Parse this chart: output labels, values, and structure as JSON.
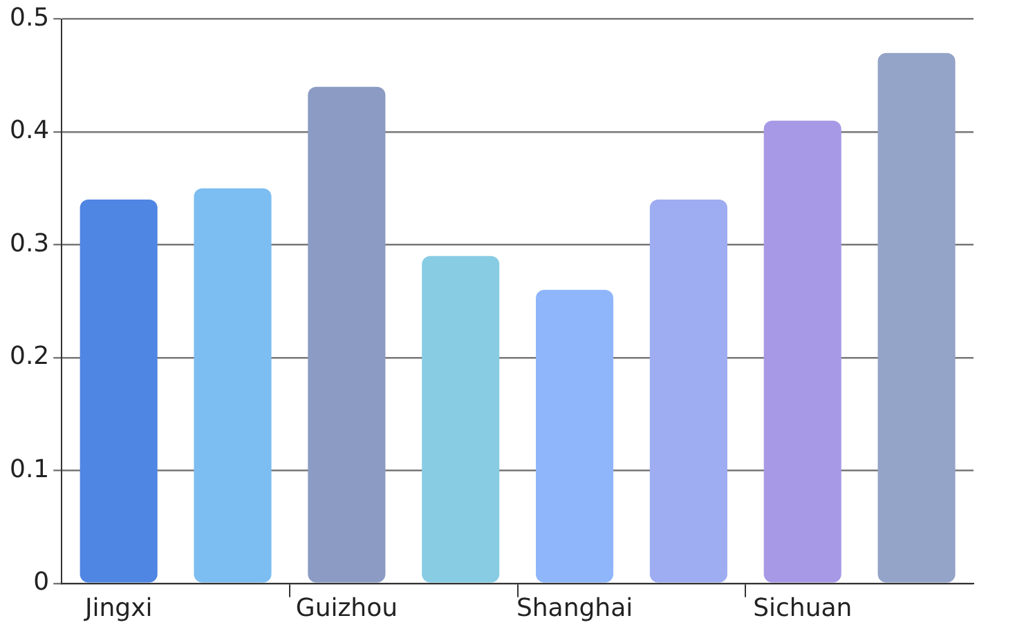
{
  "chart_data": {
    "type": "bar",
    "categories": [
      "Jingxi",
      null,
      "Guizhou",
      null,
      "Shanghai",
      null,
      "Sichuan",
      null
    ],
    "values": [
      0.34,
      0.35,
      0.44,
      0.29,
      0.26,
      0.34,
      0.41,
      0.47
    ],
    "colors": [
      "#4f86e3",
      "#7cbdf2",
      "#8b9bc4",
      "#88cce4",
      "#8fb6fb",
      "#9eacf2",
      "#a899e6",
      "#94a3c8"
    ],
    "ylim": [
      0,
      0.5
    ],
    "yticks": [
      0,
      0.1,
      0.2,
      0.3,
      0.4,
      0.5
    ],
    "grid": "y"
  }
}
